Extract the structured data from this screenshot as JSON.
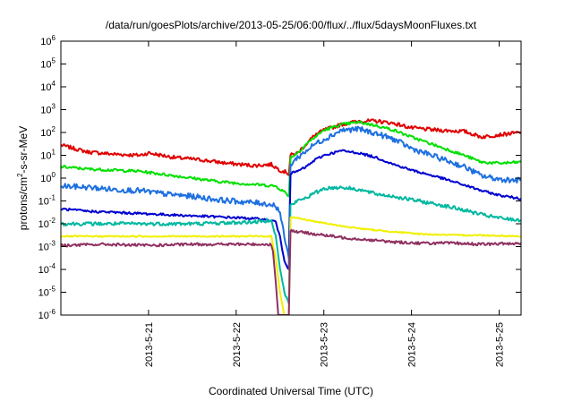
{
  "chart_data": {
    "type": "line",
    "title": "/data/run/goesPlots/archive/2013-05-25/06:00/flux/../flux/5daysMoonFluxes.txt",
    "xlabel": "Coordinated Universal Time (UTC)",
    "ylabel": "protons/cm²-s-sr-MeV",
    "yscale": "log",
    "ylim": [
      -6,
      6
    ],
    "xlim_days": [
      0,
      5.25
    ],
    "x_unit": "days since 2013-05-20 00:00 UTC",
    "xticks": [
      {
        "value": 1,
        "label": "2013-5-21"
      },
      {
        "value": 2,
        "label": "2013-5-22"
      },
      {
        "value": 3,
        "label": "2013-5-23"
      },
      {
        "value": 4,
        "label": "2013-5-24"
      },
      {
        "value": 5,
        "label": "2013-5-25"
      }
    ],
    "yticks": [
      {
        "value": -6,
        "base": "10",
        "exp": "-6"
      },
      {
        "value": -5,
        "base": "10",
        "exp": "-5"
      },
      {
        "value": -4,
        "base": "10",
        "exp": "-4"
      },
      {
        "value": -3,
        "base": "10",
        "exp": "-3"
      },
      {
        "value": -2,
        "base": "10",
        "exp": "-2"
      },
      {
        "value": -1,
        "base": "10",
        "exp": "-1"
      },
      {
        "value": 0,
        "base": "10",
        "exp": "0"
      },
      {
        "value": 1,
        "base": "10",
        "exp": "1"
      },
      {
        "value": 2,
        "base": "10",
        "exp": "2"
      },
      {
        "value": 3,
        "base": "10",
        "exp": "3"
      },
      {
        "value": 4,
        "base": "10",
        "exp": "4"
      },
      {
        "value": 5,
        "base": "10",
        "exp": "5"
      },
      {
        "value": 6,
        "base": "10",
        "exp": "6"
      }
    ],
    "grid": false,
    "legend": "none",
    "series": [
      {
        "color": "#e00000",
        "noise": 0.08,
        "points": [
          [
            0,
            1.45
          ],
          [
            0.3,
            1.15
          ],
          [
            0.6,
            1.05
          ],
          [
            0.9,
            1.0
          ],
          [
            1.0,
            1.1
          ],
          [
            1.3,
            0.9
          ],
          [
            1.6,
            0.8
          ],
          [
            1.9,
            0.65
          ],
          [
            2.2,
            0.55
          ],
          [
            2.4,
            0.6
          ],
          [
            2.5,
            0.35
          ],
          [
            2.58,
            0.25
          ],
          [
            2.6,
            0.15
          ],
          [
            2.62,
            1.0
          ],
          [
            2.7,
            1.1
          ],
          [
            2.8,
            1.5
          ],
          [
            2.9,
            1.9
          ],
          [
            3.0,
            2.1
          ],
          [
            3.2,
            2.35
          ],
          [
            3.4,
            2.5
          ],
          [
            3.6,
            2.5
          ],
          [
            3.8,
            2.4
          ],
          [
            4.0,
            2.2
          ],
          [
            4.3,
            2.1
          ],
          [
            4.6,
            2.05
          ],
          [
            4.8,
            1.8
          ],
          [
            5.0,
            1.9
          ],
          [
            5.25,
            2.0
          ]
        ]
      },
      {
        "color": "#00e000",
        "noise": 0.06,
        "points": [
          [
            0,
            0.5
          ],
          [
            0.3,
            0.4
          ],
          [
            0.6,
            0.35
          ],
          [
            0.9,
            0.3
          ],
          [
            1.2,
            0.15
          ],
          [
            1.5,
            0.0
          ],
          [
            1.8,
            -0.15
          ],
          [
            2.1,
            -0.25
          ],
          [
            2.3,
            -0.3
          ],
          [
            2.45,
            -0.35
          ],
          [
            2.55,
            -0.6
          ],
          [
            2.6,
            -0.8
          ],
          [
            2.62,
            0.9
          ],
          [
            2.7,
            1.1
          ],
          [
            2.8,
            1.5
          ],
          [
            2.9,
            1.8
          ],
          [
            3.0,
            2.1
          ],
          [
            3.2,
            2.35
          ],
          [
            3.4,
            2.45
          ],
          [
            3.6,
            2.3
          ],
          [
            3.8,
            2.1
          ],
          [
            4.0,
            1.8
          ],
          [
            4.3,
            1.4
          ],
          [
            4.6,
            1.0
          ],
          [
            4.8,
            0.7
          ],
          [
            5.0,
            0.65
          ],
          [
            5.25,
            0.7
          ]
        ]
      },
      {
        "color": "#1e70e0",
        "noise": 0.12,
        "points": [
          [
            0,
            -0.35
          ],
          [
            0.3,
            -0.4
          ],
          [
            0.6,
            -0.5
          ],
          [
            0.9,
            -0.55
          ],
          [
            1.2,
            -0.7
          ],
          [
            1.5,
            -0.8
          ],
          [
            1.8,
            -0.95
          ],
          [
            2.1,
            -1.05
          ],
          [
            2.3,
            -1.1
          ],
          [
            2.45,
            -1.2
          ],
          [
            2.5,
            -1.5
          ],
          [
            2.55,
            -2.6
          ],
          [
            2.6,
            -3.5
          ],
          [
            2.62,
            0.6
          ],
          [
            2.7,
            0.9
          ],
          [
            2.8,
            1.2
          ],
          [
            2.9,
            1.5
          ],
          [
            3.0,
            1.7
          ],
          [
            3.2,
            2.1
          ],
          [
            3.4,
            2.15
          ],
          [
            3.6,
            1.95
          ],
          [
            3.8,
            1.7
          ],
          [
            4.0,
            1.3
          ],
          [
            4.3,
            0.9
          ],
          [
            4.6,
            0.5
          ],
          [
            4.8,
            0.1
          ],
          [
            5.0,
            -0.05
          ],
          [
            5.25,
            -0.1
          ]
        ]
      },
      {
        "color": "#0000d0",
        "noise": 0.05,
        "points": [
          [
            0,
            -1.35
          ],
          [
            0.3,
            -1.45
          ],
          [
            0.6,
            -1.5
          ],
          [
            0.9,
            -1.55
          ],
          [
            1.2,
            -1.6
          ],
          [
            1.5,
            -1.65
          ],
          [
            1.8,
            -1.7
          ],
          [
            2.1,
            -1.75
          ],
          [
            2.3,
            -1.8
          ],
          [
            2.45,
            -1.9
          ],
          [
            2.5,
            -2.6
          ],
          [
            2.55,
            -3.6
          ],
          [
            2.6,
            -4.0
          ],
          [
            2.62,
            0.2
          ],
          [
            2.7,
            0.3
          ],
          [
            2.8,
            0.5
          ],
          [
            2.9,
            0.8
          ],
          [
            3.0,
            1.0
          ],
          [
            3.2,
            1.2
          ],
          [
            3.4,
            1.1
          ],
          [
            3.6,
            0.9
          ],
          [
            3.8,
            0.6
          ],
          [
            4.0,
            0.35
          ],
          [
            4.3,
            0.05
          ],
          [
            4.6,
            -0.3
          ],
          [
            4.8,
            -0.55
          ],
          [
            5.0,
            -0.75
          ],
          [
            5.25,
            -0.9
          ]
        ]
      },
      {
        "color": "#00b8a0",
        "noise": 0.08,
        "points": [
          [
            0,
            -2.0
          ],
          [
            0.5,
            -2.0
          ],
          [
            1.0,
            -2.0
          ],
          [
            1.5,
            -2.0
          ],
          [
            2.0,
            -1.95
          ],
          [
            2.3,
            -1.9
          ],
          [
            2.4,
            -1.8
          ],
          [
            2.45,
            -2.5
          ],
          [
            2.5,
            -4.0
          ],
          [
            2.55,
            -5.0
          ],
          [
            2.6,
            -5.5
          ],
          [
            2.62,
            -1.2
          ],
          [
            2.7,
            -1.0
          ],
          [
            2.8,
            -0.85
          ],
          [
            3.0,
            -0.45
          ],
          [
            3.2,
            -0.4
          ],
          [
            3.4,
            -0.5
          ],
          [
            3.6,
            -0.7
          ],
          [
            3.8,
            -0.8
          ],
          [
            4.0,
            -0.95
          ],
          [
            4.3,
            -1.15
          ],
          [
            4.6,
            -1.4
          ],
          [
            4.8,
            -1.6
          ],
          [
            5.0,
            -1.75
          ],
          [
            5.25,
            -1.85
          ]
        ]
      },
      {
        "color": "#f0f000",
        "noise": 0.03,
        "points": [
          [
            0,
            -2.55
          ],
          [
            0.5,
            -2.55
          ],
          [
            1.0,
            -2.55
          ],
          [
            1.5,
            -2.55
          ],
          [
            2.0,
            -2.55
          ],
          [
            2.4,
            -2.55
          ],
          [
            2.45,
            -3.5
          ],
          [
            2.5,
            -5.0
          ],
          [
            2.55,
            -6.0
          ],
          [
            2.6,
            -6.0
          ],
          [
            2.62,
            -1.7
          ],
          [
            2.7,
            -1.75
          ],
          [
            2.9,
            -1.9
          ],
          [
            3.2,
            -2.1
          ],
          [
            3.5,
            -2.25
          ],
          [
            3.8,
            -2.35
          ],
          [
            4.1,
            -2.45
          ],
          [
            4.5,
            -2.5
          ],
          [
            4.8,
            -2.5
          ],
          [
            5.25,
            -2.55
          ]
        ]
      },
      {
        "color": "#903060",
        "noise": 0.06,
        "points": [
          [
            0,
            -2.95
          ],
          [
            0.5,
            -2.9
          ],
          [
            1.0,
            -2.95
          ],
          [
            1.5,
            -2.9
          ],
          [
            2.0,
            -2.9
          ],
          [
            2.4,
            -2.9
          ],
          [
            2.42,
            -3.2
          ],
          [
            2.45,
            -4.5
          ],
          [
            2.48,
            -6.0
          ],
          [
            2.6,
            -6.0
          ],
          [
            2.62,
            -2.3
          ],
          [
            2.7,
            -2.35
          ],
          [
            2.9,
            -2.45
          ],
          [
            3.2,
            -2.6
          ],
          [
            3.5,
            -2.7
          ],
          [
            3.8,
            -2.8
          ],
          [
            4.1,
            -2.85
          ],
          [
            4.5,
            -2.85
          ],
          [
            4.8,
            -2.9
          ],
          [
            5.25,
            -2.85
          ]
        ]
      }
    ]
  }
}
